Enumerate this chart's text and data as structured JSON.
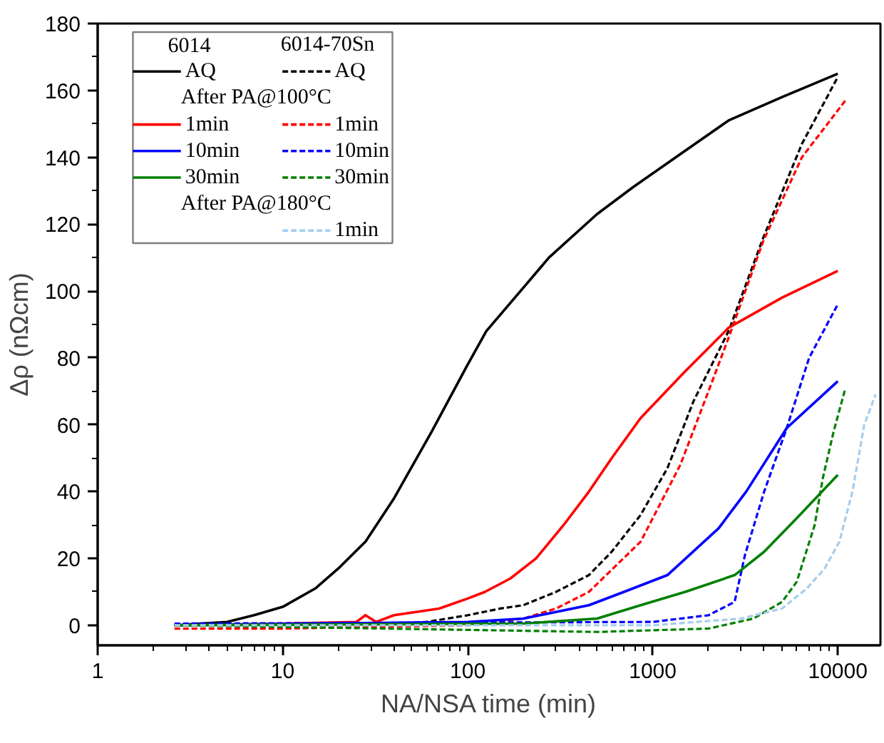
{
  "chart_data": {
    "type": "line",
    "xlabel": "NA/NSA time (min)",
    "ylabel": "Δρ (nΩcm)",
    "log": "x",
    "xlim": [
      1,
      17000
    ],
    "xticks": [
      1,
      10,
      100,
      1000,
      10000
    ],
    "ylim": [
      -6,
      180
    ],
    "yticks": [
      0,
      20,
      40,
      60,
      80,
      100,
      120,
      140,
      160,
      180
    ],
    "grid": false,
    "legend": "top left",
    "marker": "none",
    "annotations": [
      "6014",
      "6014-70Sn",
      "After PA@100°C",
      "After PA@180°C"
    ],
    "series": [
      {
        "name": "AQ",
        "color": "#000000",
        "line_style": "solid",
        "x": [
          2.6,
          5,
          7,
          10,
          15,
          20,
          28,
          40,
          64,
          100,
          126,
          200,
          275,
          500,
          780,
          1500,
          2570,
          5000,
          10000
        ],
        "values": [
          0,
          1,
          3,
          5.5,
          11,
          17,
          25,
          38,
          58,
          78,
          88,
          101,
          110,
          123,
          131,
          142,
          151,
          158,
          165
        ]
      },
      {
        "name": "AQ",
        "color": "#000000",
        "line_style": "dashed",
        "x": [
          2.6,
          30,
          60,
          100,
          150,
          200,
          300,
          452,
          600,
          860,
          1200,
          1660,
          2570,
          3960,
          6400,
          10000
        ],
        "values": [
          0,
          0,
          1,
          3,
          5,
          6,
          10,
          15,
          22,
          33,
          47,
          67,
          88,
          116,
          144,
          164
        ]
      },
      {
        "name": "1min",
        "color": "#ff0000",
        "line_style": "solid",
        "x": [
          2.6,
          10,
          25,
          28,
          32,
          40,
          70,
          100,
          124,
          170,
          234,
          330,
          452,
          600,
          860,
          1500,
          2570,
          5000,
          10000
        ],
        "values": [
          0,
          0.5,
          1,
          3,
          1,
          3,
          5,
          8,
          10,
          14,
          20,
          30,
          40,
          50,
          62,
          76,
          89,
          98,
          106
        ]
      },
      {
        "name": "1min",
        "color": "#ff0000",
        "line_style": "dashed",
        "x": [
          2.6,
          10,
          100,
          200,
          300,
          452,
          860,
          1410,
          2000,
          2570,
          3960,
          6400,
          11000
        ],
        "values": [
          -1,
          -1,
          0,
          2,
          5,
          10,
          25,
          48,
          70,
          86,
          115,
          140,
          157
        ]
      },
      {
        "name": "10min",
        "color": "#0000ff",
        "line_style": "solid",
        "x": [
          2.6,
          100,
          200,
          452,
          700,
          1200,
          2270,
          3200,
          5300,
          10000
        ],
        "values": [
          0,
          1,
          2,
          6,
          10,
          15,
          29,
          40,
          59,
          73
        ]
      },
      {
        "name": "10min",
        "color": "#0000ff",
        "line_style": "dashed",
        "x": [
          2.6,
          1000,
          2000,
          2770,
          3150,
          4000,
          5300,
          7000,
          10000
        ],
        "values": [
          0.5,
          1,
          3,
          7,
          21,
          40,
          59,
          80,
          96
        ]
      },
      {
        "name": "30min",
        "color": "#008000",
        "line_style": "solid",
        "x": [
          2.6,
          200,
          500,
          860,
          1500,
          2770,
          4000,
          6000,
          10000
        ],
        "values": [
          0,
          0.5,
          2,
          6,
          10,
          15,
          22,
          32,
          45
        ]
      },
      {
        "name": "30min",
        "color": "#008000",
        "line_style": "dashed",
        "x": [
          2.6,
          500,
          2000,
          3500,
          5000,
          6000,
          7500,
          8300,
          9500,
          11000
        ],
        "values": [
          0,
          -2,
          -1,
          2,
          7,
          13,
          30,
          44,
          58,
          71
        ]
      },
      {
        "name": "1min",
        "color": "#a6cdec",
        "line_style": "dashed",
        "x": [
          2.6,
          1000,
          3000,
          5000,
          6800,
          8500,
          10200,
          12000,
          13900,
          16000
        ],
        "values": [
          0,
          0,
          2,
          5,
          11,
          17,
          25,
          40,
          60,
          69
        ]
      }
    ]
  }
}
